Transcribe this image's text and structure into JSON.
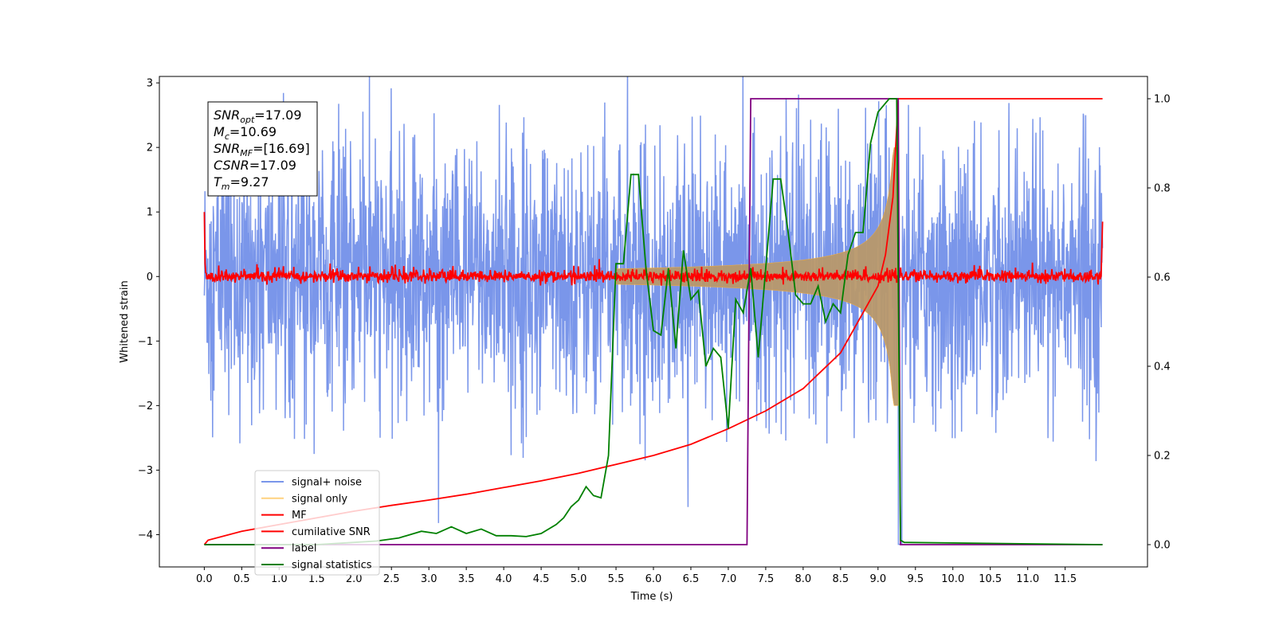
{
  "chart_data": {
    "type": "line",
    "xlabel": "Time (s)",
    "ylabel": "Whitened strain",
    "xlim": [
      -0.6,
      12.6
    ],
    "ylim": [
      -4.5,
      3.1
    ],
    "y2lim": [
      -0.05,
      1.05
    ],
    "xticks": [
      "0.0",
      "0.5",
      "1.0",
      "1.5",
      "2.0",
      "2.5",
      "3.0",
      "3.5",
      "4.0",
      "4.5",
      "5.0",
      "5.5",
      "6.0",
      "6.5",
      "7.0",
      "7.5",
      "8.0",
      "8.5",
      "9.0",
      "9.5",
      "10.0",
      "10.5",
      "11.0",
      "11.5"
    ],
    "yticks": [
      "3",
      "2",
      "1",
      "0",
      "−1",
      "−2",
      "−3",
      "−4"
    ],
    "y2ticks": [
      "0.0",
      "0.2",
      "0.4",
      "0.6",
      "0.8",
      "1.0"
    ],
    "colors": {
      "signal_noise": "#4169e1",
      "signal_only": "#ffa500",
      "mf": "#ff0000",
      "cumulative_snr": "#ff0000",
      "label": "#800080",
      "signal_statistics": "#008000"
    },
    "series": [
      {
        "name": "signal+ noise",
        "noise_band": [
          -1.4,
          1.5
        ],
        "noise_peaks": [
          -2.6,
          2.7
        ]
      },
      {
        "name": "signal only",
        "chirp_start": 5.5,
        "chirp_end": 9.27,
        "amp_end": 2.0
      },
      {
        "name": "MF",
        "level": 0.0,
        "jitter": 0.1
      },
      {
        "name": "cumilative SNR",
        "x": [
          0.0,
          0.05,
          0.5,
          1.0,
          1.5,
          2.0,
          2.5,
          3.0,
          3.5,
          4.0,
          4.5,
          5.0,
          5.5,
          6.0,
          6.5,
          7.0,
          7.5,
          8.0,
          8.5,
          9.0,
          9.1,
          9.2,
          9.27,
          9.3,
          12.0
        ],
        "y": [
          0.0,
          0.01,
          0.03,
          0.045,
          0.06,
          0.075,
          0.088,
          0.1,
          0.113,
          0.128,
          0.143,
          0.16,
          0.18,
          0.2,
          0.225,
          0.26,
          0.3,
          0.35,
          0.43,
          0.58,
          0.65,
          0.78,
          1.0,
          1.0,
          1.0
        ]
      },
      {
        "name": "label",
        "x": [
          0.0,
          7.25,
          7.3,
          9.27,
          9.3,
          12.0
        ],
        "y": [
          0.0,
          0.0,
          1.0,
          1.0,
          0.0,
          0.0
        ]
      },
      {
        "name": "signal statistics",
        "x": [
          0.0,
          0.5,
          1.0,
          1.5,
          2.0,
          2.3,
          2.6,
          2.9,
          3.1,
          3.3,
          3.5,
          3.7,
          3.9,
          4.1,
          4.3,
          4.5,
          4.7,
          4.8,
          4.9,
          5.0,
          5.1,
          5.2,
          5.3,
          5.4,
          5.5,
          5.6,
          5.7,
          5.8,
          5.9,
          6.0,
          6.1,
          6.2,
          6.3,
          6.4,
          6.5,
          6.6,
          6.7,
          6.8,
          6.9,
          7.0,
          7.1,
          7.2,
          7.3,
          7.4,
          7.5,
          7.6,
          7.7,
          7.8,
          7.9,
          8.0,
          8.1,
          8.2,
          8.3,
          8.4,
          8.5,
          8.6,
          8.7,
          8.8,
          8.9,
          9.0,
          9.1,
          9.15,
          9.25,
          9.3,
          9.35,
          12.0
        ],
        "y": [
          0.0,
          0.0,
          0.0,
          0.0,
          0.005,
          0.008,
          0.015,
          0.03,
          0.025,
          0.04,
          0.025,
          0.035,
          0.02,
          0.02,
          0.018,
          0.025,
          0.045,
          0.06,
          0.085,
          0.1,
          0.13,
          0.11,
          0.105,
          0.2,
          0.63,
          0.63,
          0.83,
          0.83,
          0.62,
          0.48,
          0.47,
          0.62,
          0.44,
          0.66,
          0.55,
          0.57,
          0.4,
          0.44,
          0.42,
          0.26,
          0.55,
          0.52,
          0.62,
          0.42,
          0.62,
          0.82,
          0.82,
          0.7,
          0.56,
          0.54,
          0.54,
          0.58,
          0.5,
          0.54,
          0.52,
          0.65,
          0.7,
          0.7,
          0.9,
          0.97,
          0.99,
          1.0,
          1.0,
          0.01,
          0.005,
          0.0
        ]
      }
    ],
    "legend": {
      "placement": "lower-left",
      "entries": [
        "signal+ noise",
        "signal only",
        "MF",
        "cumilative SNR",
        "label",
        "signal statistics"
      ]
    },
    "annotation": [
      {
        "main": "SNR",
        "sub": "opt",
        "rest": "=17.09"
      },
      {
        "main": "M",
        "sub": "c",
        "rest": "=10.69"
      },
      {
        "main": "SNR",
        "sub": "MF",
        "rest": "=[16.69]"
      },
      {
        "main": "CSNR",
        "sub": "",
        "rest": "=17.09"
      },
      {
        "main": "T",
        "sub": "m",
        "rest": "=9.27"
      }
    ]
  }
}
